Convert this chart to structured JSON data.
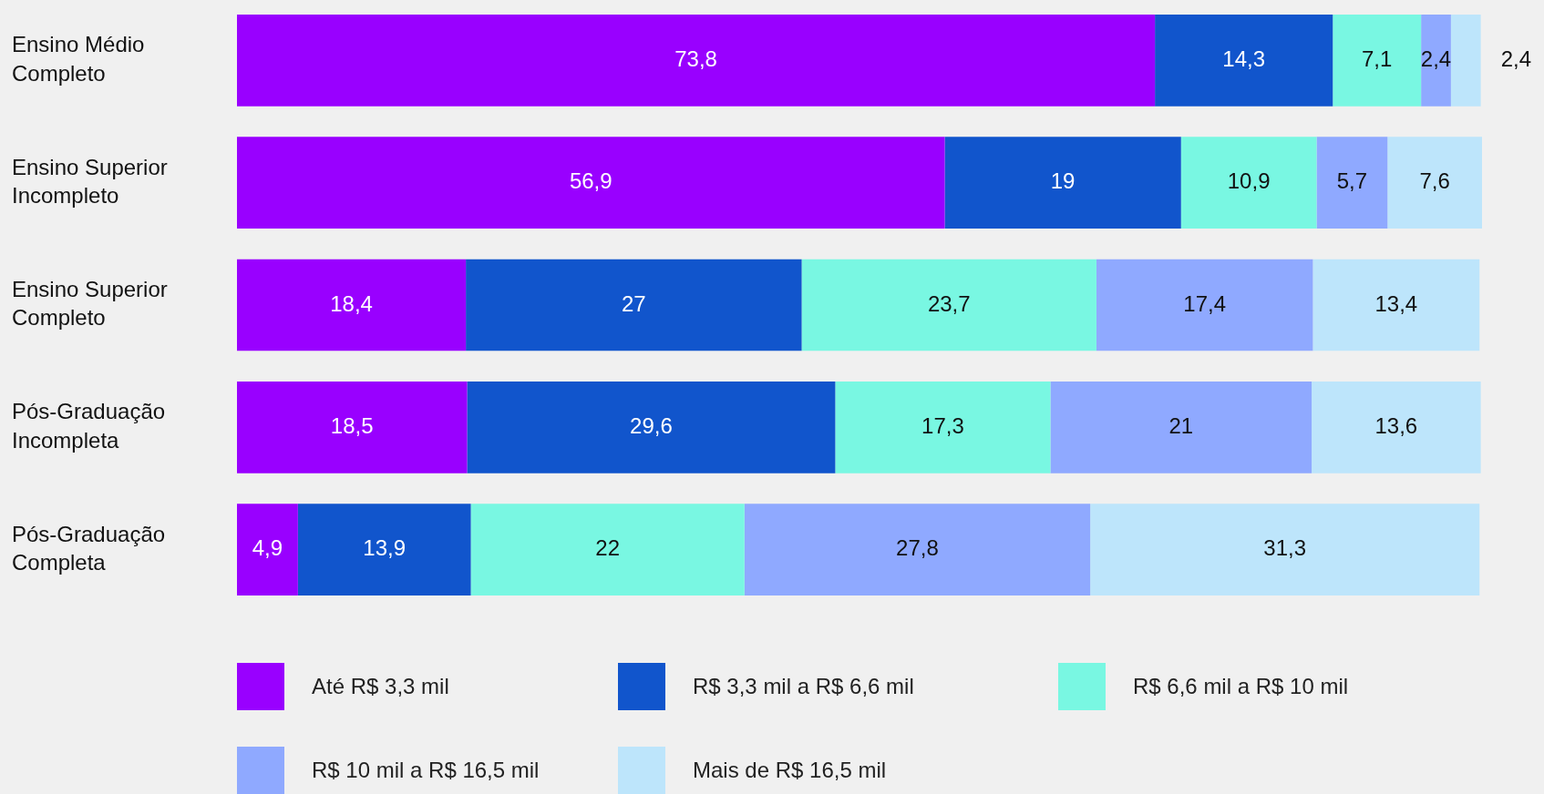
{
  "chart_data": {
    "type": "bar",
    "orientation": "horizontal",
    "stacked": true,
    "legend": "bottom",
    "categories": [
      "Ensino Médio Completo",
      "Ensino Superior Incompleto",
      "Ensino Superior Completo",
      "Pós-Graduação Incompleta",
      "Pós-Graduação Completa"
    ],
    "series": [
      {
        "name": "Até R$ 3,3 mil",
        "color": "#9900ff",
        "values": [
          73.8,
          56.9,
          18.4,
          18.5,
          4.9
        ],
        "value_labels": [
          "73,8",
          "56,9",
          "18,4",
          "18,5",
          "4,9"
        ]
      },
      {
        "name": "R$ 3,3 mil a R$ 6,6 mil",
        "color": "#1155cc",
        "values": [
          14.3,
          19,
          27,
          29.6,
          13.9
        ],
        "value_labels": [
          "14,3",
          "19",
          "27",
          "29,6",
          "13,9"
        ]
      },
      {
        "name": "R$ 6,6 mil a R$ 10 mil",
        "color": "#79f7e2",
        "values": [
          7.1,
          10.9,
          23.7,
          17.3,
          22
        ],
        "value_labels": [
          "7,1",
          "10,9",
          "23,7",
          "17,3",
          "22"
        ]
      },
      {
        "name": "R$ 10 mil a R$ 16,5 mil",
        "color": "#8fa9ff",
        "values": [
          2.4,
          5.7,
          17.4,
          21,
          27.8
        ],
        "value_labels": [
          "2,4",
          "5,7",
          "17,4",
          "21",
          "27,8"
        ]
      },
      {
        "name": "Mais de R$ 16,5 mil",
        "color": "#bde5fb",
        "values": [
          2.4,
          7.6,
          13.4,
          13.6,
          31.3
        ],
        "value_labels": [
          "2,4",
          "7,6",
          "13,4",
          "13,6",
          "31,3"
        ]
      }
    ]
  }
}
